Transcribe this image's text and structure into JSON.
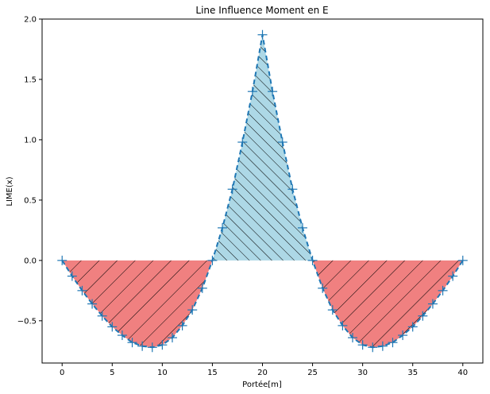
{
  "chart_data": {
    "type": "line",
    "title": "Line Influence Moment en E",
    "xlabel": "Portée[m]",
    "ylabel": "LIME(x)",
    "xlim": [
      -2,
      42
    ],
    "ylim": [
      -0.85,
      2.0
    ],
    "xticks": [
      0,
      5,
      10,
      15,
      20,
      25,
      30,
      35,
      40
    ],
    "yticks": [
      -0.5,
      0.0,
      0.5,
      1.0,
      1.5,
      2.0
    ],
    "ytick_labels": [
      "−0.5",
      "0.0",
      "0.5",
      "1.0",
      "1.5",
      "2.0"
    ],
    "grid": false,
    "line_style": "dashed",
    "marker": "+",
    "colors": {
      "line": "#1f77b4",
      "negative_fill": "#f08080",
      "positive_fill": "#add8e6",
      "hatch": "#000000"
    },
    "series": [
      {
        "x": [
          0,
          1,
          2,
          3,
          4,
          5,
          6,
          7,
          8,
          9,
          10,
          11,
          12,
          13,
          14,
          15,
          16,
          17,
          18,
          19,
          20,
          21,
          22,
          23,
          24,
          25,
          26,
          27,
          28,
          29,
          30,
          31,
          32,
          33,
          34,
          35,
          36,
          37,
          38,
          39,
          40
        ],
        "y": [
          0.0,
          -0.13,
          -0.25,
          -0.36,
          -0.46,
          -0.55,
          -0.62,
          -0.68,
          -0.71,
          -0.72,
          -0.7,
          -0.64,
          -0.54,
          -0.41,
          -0.23,
          0.0,
          0.27,
          0.59,
          0.98,
          1.4,
          1.87,
          1.4,
          0.98,
          0.59,
          0.27,
          0.0,
          -0.23,
          -0.41,
          -0.54,
          -0.64,
          -0.7,
          -0.72,
          -0.71,
          -0.68,
          -0.62,
          -0.55,
          -0.46,
          -0.36,
          -0.25,
          -0.13,
          0.0
        ]
      }
    ]
  }
}
